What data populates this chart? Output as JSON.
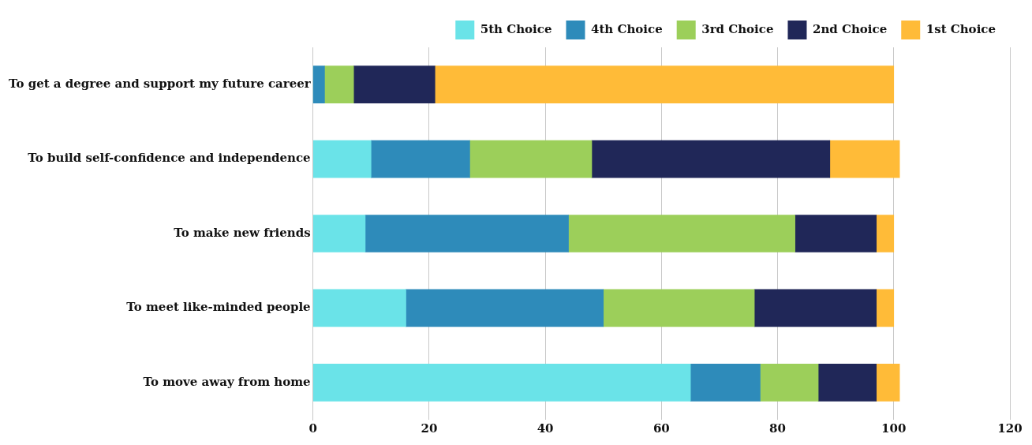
{
  "chart_data": {
    "type": "bar",
    "orientation": "horizontal",
    "stacked": true,
    "categories": [
      "To get a degree and support my future career",
      "To build self-confidence and independence",
      "To make new friends",
      "To meet like-minded people",
      "To move away from home"
    ],
    "series": [
      {
        "name": "5th Choice",
        "color": "#6ae3e8",
        "values": [
          0,
          10,
          9,
          16,
          65
        ]
      },
      {
        "name": "4th Choice",
        "color": "#2e8bba",
        "values": [
          2,
          17,
          35,
          34,
          12
        ]
      },
      {
        "name": "3rd Choice",
        "color": "#9ccf5a",
        "values": [
          5,
          21,
          39,
          26,
          10
        ]
      },
      {
        "name": "2nd Choice",
        "color": "#202758",
        "values": [
          14,
          41,
          14,
          21,
          10
        ]
      },
      {
        "name": "1st Choice",
        "color": "#ffbb38",
        "values": [
          79,
          12,
          3,
          3,
          4
        ]
      }
    ],
    "xlim": [
      0,
      120
    ],
    "xticks": [
      0,
      20,
      40,
      60,
      80,
      100,
      120
    ],
    "grid": "x",
    "legend": "top right"
  }
}
